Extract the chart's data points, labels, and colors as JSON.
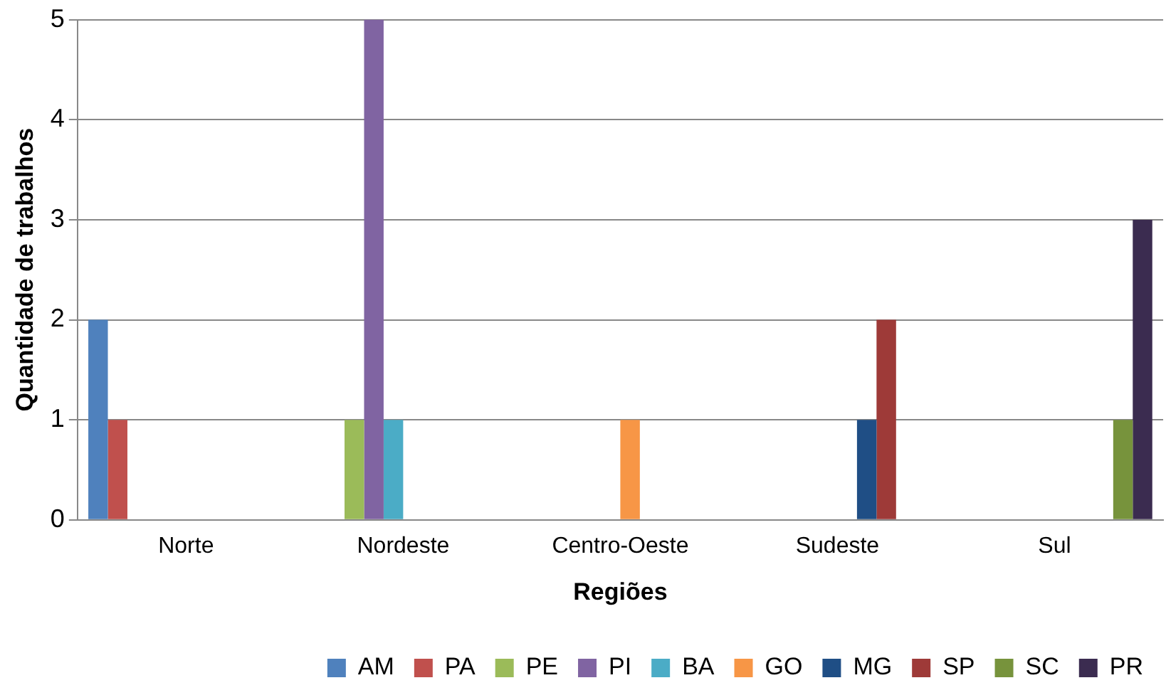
{
  "chart_data": {
    "type": "bar",
    "xlabel": "Regiões",
    "ylabel": "Quantidade de trabalhos",
    "categories": [
      "Norte",
      "Nordeste",
      "Centro-Oeste",
      "Sudeste",
      "Sul"
    ],
    "series": [
      {
        "name": "AM",
        "color": "#4f81bd",
        "values": [
          2,
          0,
          0,
          0,
          0
        ]
      },
      {
        "name": "PA",
        "color": "#c0504d",
        "values": [
          1,
          0,
          0,
          0,
          0
        ]
      },
      {
        "name": "PE",
        "color": "#9bbb59",
        "values": [
          0,
          1,
          0,
          0,
          0
        ]
      },
      {
        "name": "PI",
        "color": "#8064a2",
        "values": [
          0,
          5,
          0,
          0,
          0
        ]
      },
      {
        "name": "BA",
        "color": "#4bacc6",
        "values": [
          0,
          1,
          0,
          0,
          0
        ]
      },
      {
        "name": "GO",
        "color": "#f79646",
        "values": [
          0,
          0,
          1,
          0,
          0
        ]
      },
      {
        "name": "MG",
        "color": "#1f4e85",
        "values": [
          0,
          0,
          0,
          1,
          0
        ]
      },
      {
        "name": "SP",
        "color": "#9e3a38",
        "values": [
          0,
          0,
          0,
          2,
          0
        ]
      },
      {
        "name": "SC",
        "color": "#77933c",
        "values": [
          0,
          0,
          0,
          0,
          1
        ]
      },
      {
        "name": "PR",
        "color": "#3b2c50",
        "values": [
          0,
          0,
          0,
          0,
          3
        ]
      }
    ],
    "ylim": [
      0,
      5
    ],
    "yticks": [
      0,
      1,
      2,
      3,
      4,
      5
    ],
    "grid": "y",
    "legend": "bottom right"
  }
}
